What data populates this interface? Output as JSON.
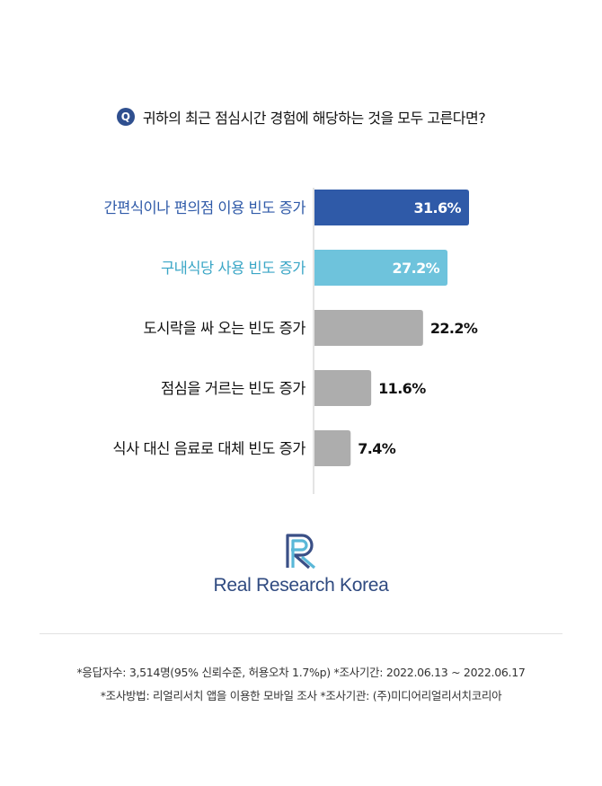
{
  "question": {
    "badge": "Q",
    "text": "귀하의 최근 점심시간 경험에 해당하는 것을 모두 고른다면?"
  },
  "chart_data": {
    "type": "bar",
    "orientation": "horizontal",
    "categories": [
      "간편식이나 편의점 이용 빈도 증가",
      "구내식당 사용 빈도 증가",
      "도시락을 싸 오는 빈도 증가",
      "점심을 거르는 빈도 증가",
      "식사 대신 음료로 대체 빈도 증가"
    ],
    "values": [
      31.6,
      27.2,
      22.2,
      11.6,
      7.4
    ],
    "value_labels": [
      "31.6%",
      "27.2%",
      "22.2%",
      "11.6%",
      "7.4%"
    ],
    "unit": "%",
    "xlim": [
      0,
      40
    ],
    "grid": false,
    "legend": "none",
    "colors": [
      "#2f5aa8",
      "#6ec3dc",
      "#adadad",
      "#adadad",
      "#adadad"
    ],
    "label_colors": [
      "#2f5aa8",
      "#3aa6c6",
      "#111111",
      "#111111",
      "#111111"
    ]
  },
  "logo": {
    "text": "Real Research Korea",
    "icon": "rr-logo-icon",
    "color": "#2f4a80"
  },
  "footnotes": [
    "*응답자수: 3,514명(95% 신뢰수준, 허용오차 1.7%p)  *조사기간: 2022.06.13 ~ 2022.06.17",
    "*조사방법: 리얼리서치 앱을 이용한 모바일 조사  *조사기관: (주)미디어리얼리서치코리아"
  ]
}
